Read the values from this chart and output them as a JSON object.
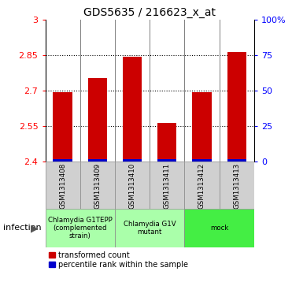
{
  "title": "GDS5635 / 216623_x_at",
  "samples": [
    "GSM1313408",
    "GSM1313409",
    "GSM1313410",
    "GSM1313411",
    "GSM1313412",
    "GSM1313413"
  ],
  "red_values": [
    2.695,
    2.755,
    2.845,
    2.565,
    2.695,
    2.865
  ],
  "blue_pct": [
    2,
    2,
    2,
    2,
    2,
    2
  ],
  "ylim_left": [
    2.4,
    3.0
  ],
  "yticks_left": [
    2.4,
    2.55,
    2.7,
    2.85,
    3.0
  ],
  "ytick_labels_left": [
    "2.4",
    "2.55",
    "2.7",
    "2.85",
    "3"
  ],
  "yticks_right": [
    0,
    25,
    50,
    75,
    100
  ],
  "ytick_labels_right": [
    "0",
    "25",
    "50",
    "75",
    "100%"
  ],
  "group_configs": [
    {
      "start": 0,
      "end": 1,
      "label": "Chlamydia G1TEPP\n(complemented\nstrain)",
      "color": "#aaffaa"
    },
    {
      "start": 2,
      "end": 3,
      "label": "Chlamydia G1V\nmutant",
      "color": "#aaffaa"
    },
    {
      "start": 4,
      "end": 5,
      "label": "mock",
      "color": "#44ee44"
    }
  ],
  "infection_label": "infection",
  "bar_color_red": "#cc0000",
  "bar_color_blue": "#0000cc",
  "legend_red": "transformed count",
  "legend_blue": "percentile rank within the sample"
}
